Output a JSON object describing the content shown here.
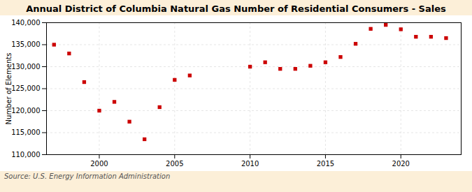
{
  "chart_data": {
    "type": "scatter",
    "title": "Annual District of Columbia Natural Gas Number of Residential Consumers - Sales",
    "ylabel": "Number of Elements",
    "source": "Source: U.S. Energy Information Administration",
    "x": [
      1997,
      1998,
      1999,
      2000,
      2001,
      2002,
      2003,
      2004,
      2005,
      2006,
      2010,
      2011,
      2012,
      2013,
      2014,
      2015,
      2016,
      2017,
      2018,
      2019,
      2020,
      2021,
      2022,
      2023
    ],
    "values": [
      135000,
      133000,
      126500,
      120000,
      122000,
      117500,
      113500,
      120800,
      127000,
      128000,
      130000,
      131000,
      129500,
      129500,
      130200,
      131000,
      132200,
      135200,
      138600,
      139500,
      138500,
      136800,
      136800,
      136500
    ],
    "color": "#cc0000",
    "marker": "square",
    "xlim": [
      1996.5,
      2024
    ],
    "xticks": [
      2000,
      2005,
      2010,
      2015,
      2020
    ],
    "ylim": [
      110000,
      140000
    ],
    "yticks": [
      {
        "value": 110000,
        "label": "110,000"
      },
      {
        "value": 115000,
        "label": "115,000"
      },
      {
        "value": 120000,
        "label": "120,000"
      },
      {
        "value": 125000,
        "label": "125,000"
      },
      {
        "value": 130000,
        "label": "130,000"
      },
      {
        "value": 135000,
        "label": "135,000"
      },
      {
        "value": 140000,
        "label": "140,000"
      }
    ],
    "grid": true
  }
}
